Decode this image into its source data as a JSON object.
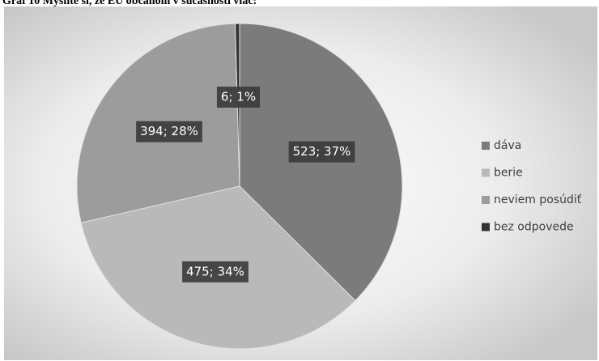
{
  "chart_data": {
    "type": "pie",
    "title": "Graf 10 Myslíte si, že EÚ občanom v súčasnosti viac:",
    "categories": [
      "dáva",
      "berie",
      "neviem posúdiť",
      "bez odpovede"
    ],
    "values": [
      523,
      475,
      394,
      6
    ],
    "value_labels": [
      "523; 37%",
      "475; 34%",
      "394; 28%",
      "6; 1%"
    ],
    "colors": [
      "#7b7b7b",
      "#b9b9b9",
      "#9c9c9c",
      "#333333"
    ],
    "legend": "right"
  }
}
